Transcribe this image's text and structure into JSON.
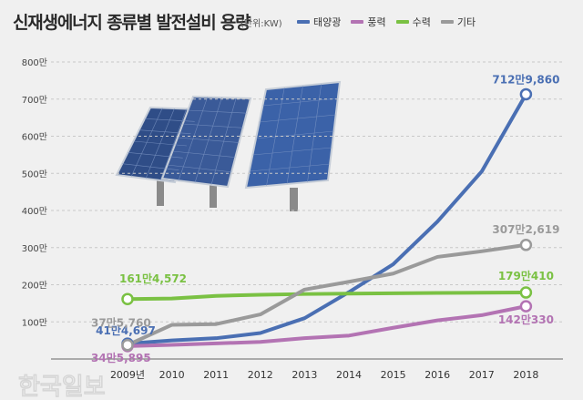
{
  "title": "신재생에너지 종류별 발전설비 용량",
  "unit": "(단위:KW)",
  "watermark": "한국일보",
  "chart_data": {
    "type": "line",
    "x": [
      "2009년",
      "2010",
      "2011",
      "2012",
      "2013",
      "2014",
      "2015",
      "2016",
      "2017",
      "2018"
    ],
    "ylim": [
      0,
      8000000
    ],
    "yticks": [
      1000000,
      2000000,
      3000000,
      4000000,
      5000000,
      6000000,
      7000000,
      8000000
    ],
    "ytick_labels": [
      "100만",
      "200만",
      "300만",
      "400만",
      "500만",
      "600만",
      "700만",
      "800만"
    ],
    "grid": true,
    "legend_position": "top-right",
    "series": [
      {
        "name": "태양광",
        "color": "#4a6fb3",
        "values": [
          414697,
          500000,
          560000,
          700000,
          1100000,
          1800000,
          2550000,
          3700000,
          5050000,
          7129860
        ],
        "start_label": "41만4,697",
        "end_label": "712만9,860"
      },
      {
        "name": "풍력",
        "color": "#b373b3",
        "values": [
          345895,
          380000,
          420000,
          460000,
          560000,
          630000,
          840000,
          1040000,
          1180000,
          1420330
        ],
        "start_label": "34만5,895",
        "end_label": "142만330"
      },
      {
        "name": "수력",
        "color": "#7ac143",
        "values": [
          1614572,
          1630000,
          1700000,
          1730000,
          1750000,
          1760000,
          1770000,
          1780000,
          1785000,
          1790410
        ],
        "start_label": "161만4,572",
        "end_label": "179만410"
      },
      {
        "name": "기타",
        "color": "#9a9a9a",
        "values": [
          375760,
          920000,
          940000,
          1200000,
          1870000,
          2080000,
          2300000,
          2750000,
          2900000,
          3072619
        ],
        "start_label": "37만5,760",
        "end_label": "307만2,619"
      }
    ]
  }
}
